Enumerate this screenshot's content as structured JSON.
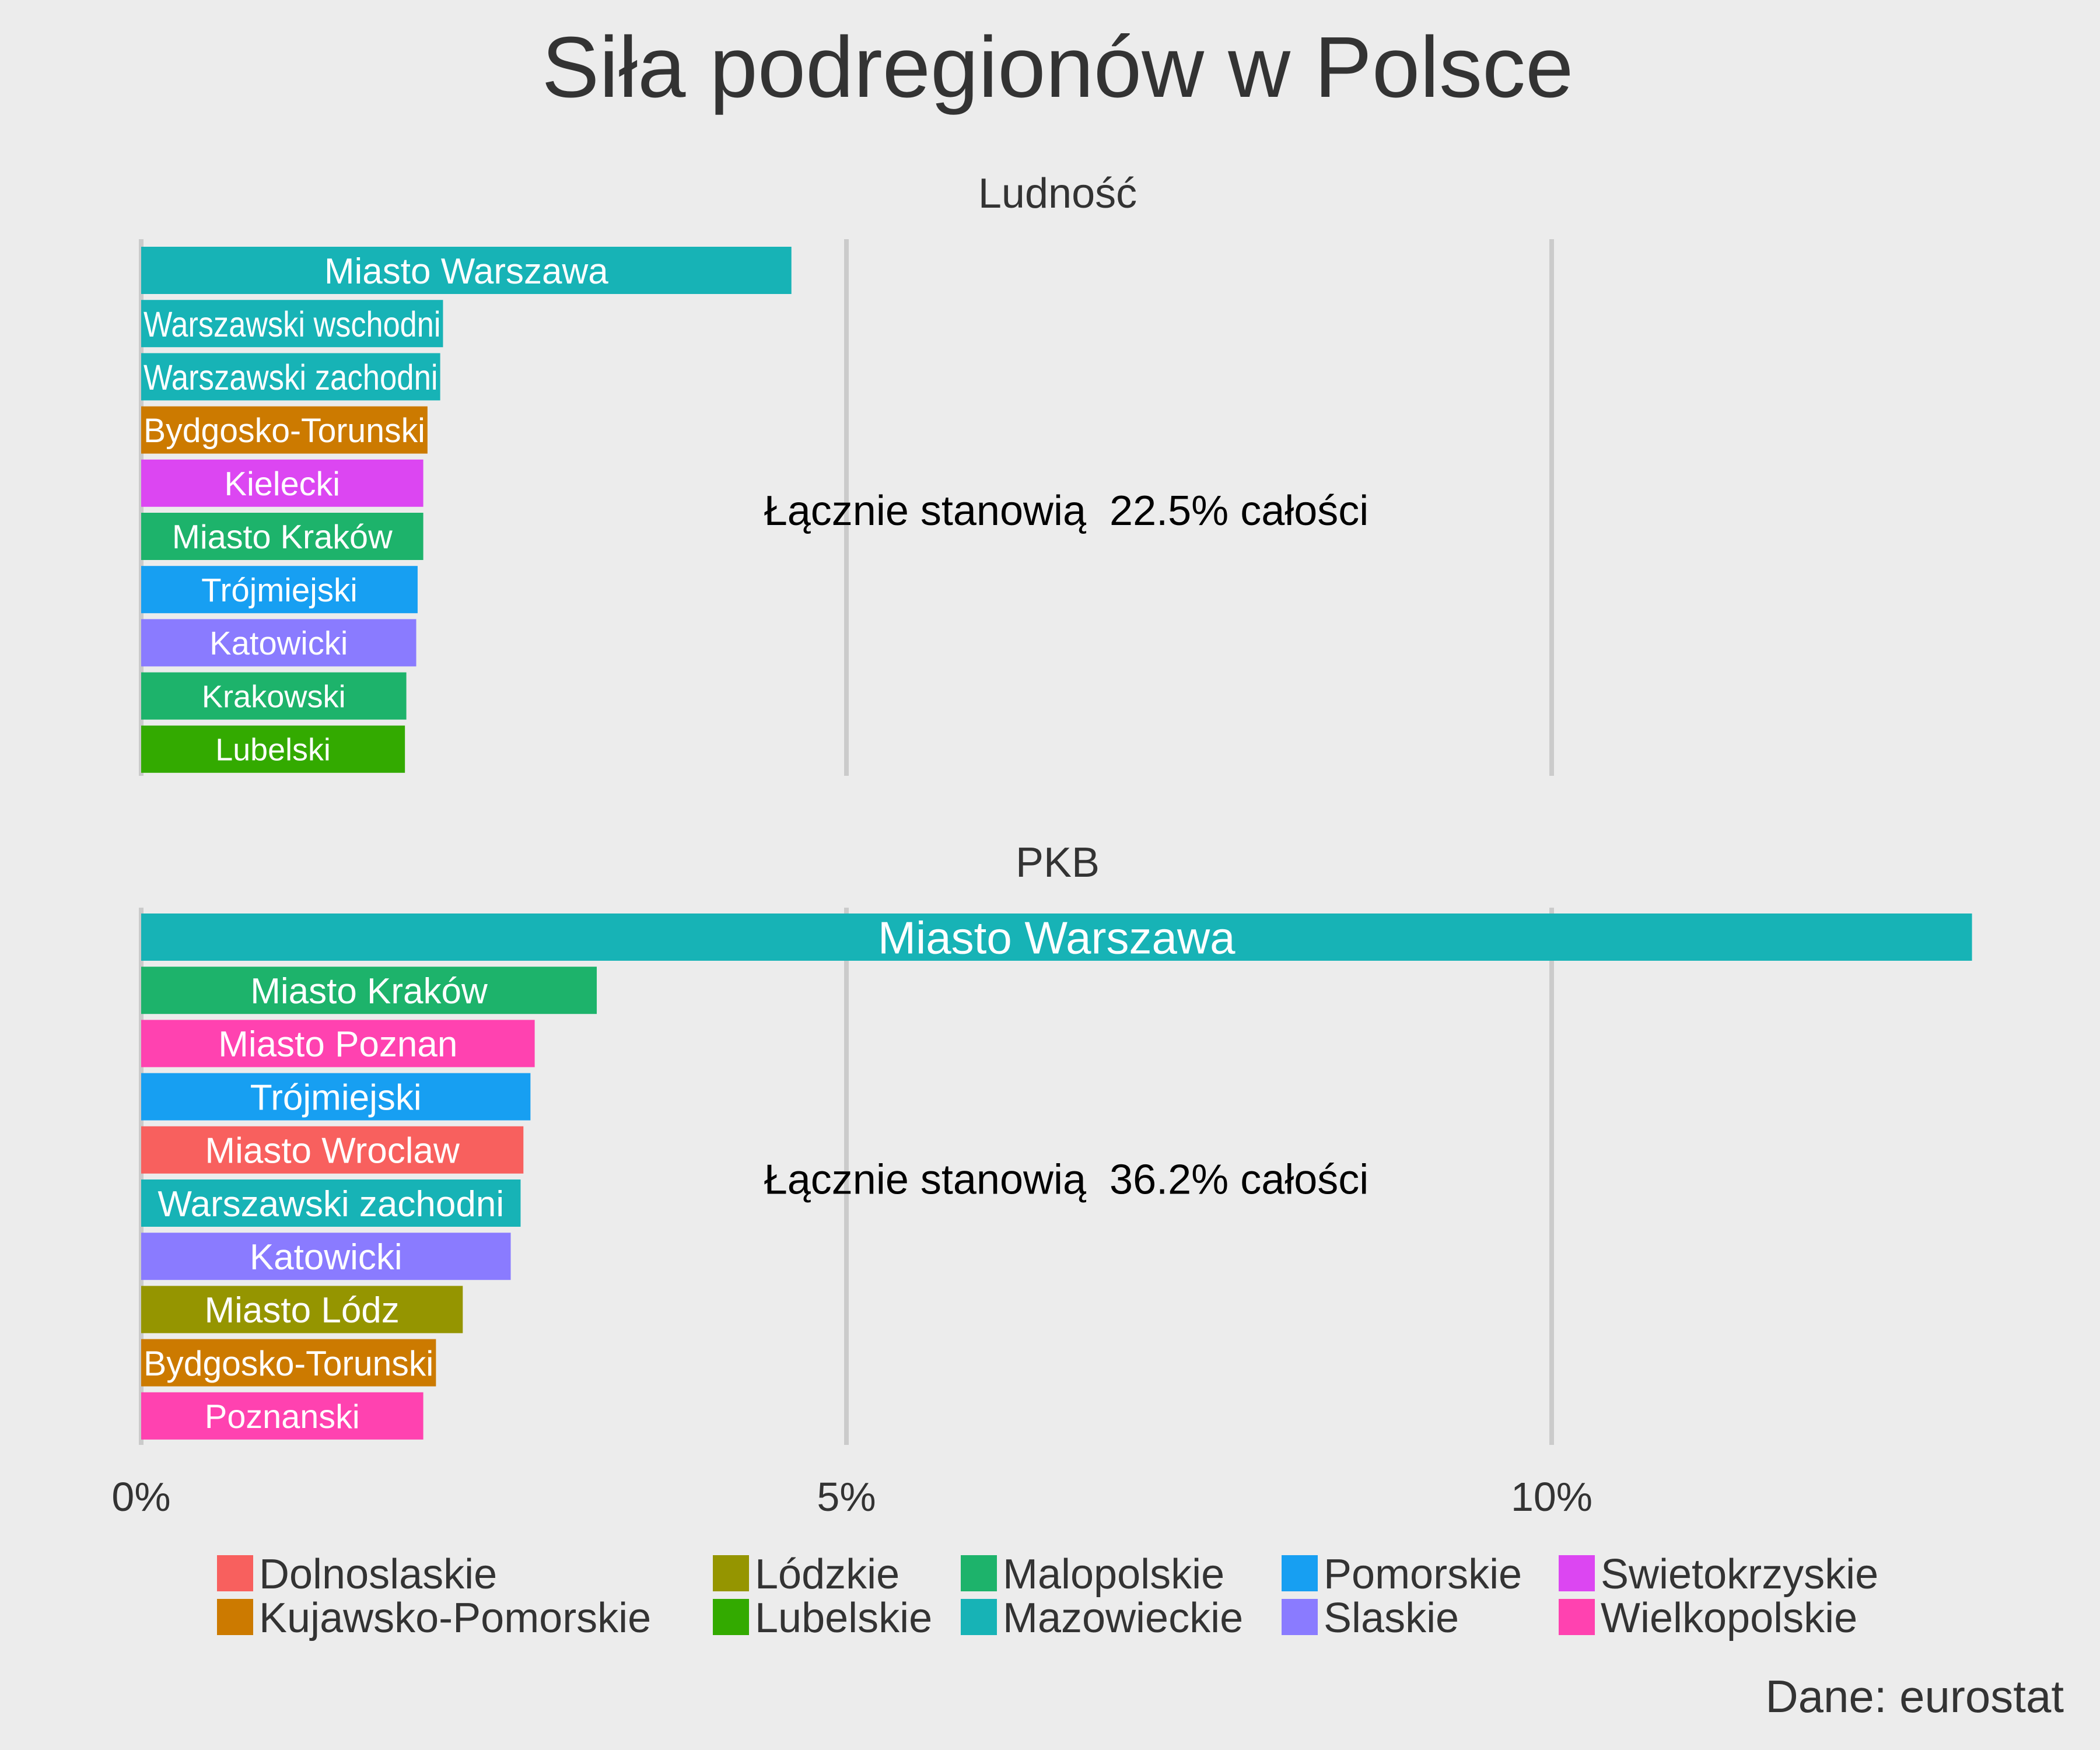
{
  "chart_data": {
    "type": "bar",
    "orientation": "horizontal",
    "title": "Siła podregionów w Polsce",
    "caption": "Dane: eurostat",
    "xlim": [
      0,
      13
    ],
    "x_ticks": [
      {
        "value": 0,
        "label": "0%"
      },
      {
        "value": 5,
        "label": "5%"
      },
      {
        "value": 10,
        "label": "10%"
      }
    ],
    "panels": [
      {
        "name": "Ludność",
        "annotation": "Łącznie stanowią  22.5% całości",
        "bars": [
          {
            "label": "Miasto Warszawa",
            "value": 4.61,
            "region": "Mazowieckie"
          },
          {
            "label": "Warszawski wschodni",
            "value": 2.14,
            "region": "Mazowieckie"
          },
          {
            "label": "Warszawski zachodni",
            "value": 2.12,
            "region": "Mazowieckie"
          },
          {
            "label": "Bydgosko-Torunski",
            "value": 2.03,
            "region": "Kujawsko-Pomorskie"
          },
          {
            "label": "Kielecki",
            "value": 2.0,
            "region": "Swietokrzyskie"
          },
          {
            "label": "Miasto Kraków",
            "value": 2.0,
            "region": "Malopolskie"
          },
          {
            "label": "Trójmiejski",
            "value": 1.96,
            "region": "Pomorskie"
          },
          {
            "label": "Katowicki",
            "value": 1.95,
            "region": "Slaskie"
          },
          {
            "label": "Krakowski",
            "value": 1.88,
            "region": "Malopolskie"
          },
          {
            "label": "Lubelski",
            "value": 1.87,
            "region": "Lubelskie"
          }
        ]
      },
      {
        "name": "PKB",
        "annotation": "Łącznie stanowią  36.2% całości",
        "bars": [
          {
            "label": "Miasto Warszawa",
            "value": 12.98,
            "region": "Mazowieckie"
          },
          {
            "label": "Miasto Kraków",
            "value": 3.23,
            "region": "Malopolskie"
          },
          {
            "label": "Miasto Poznan",
            "value": 2.79,
            "region": "Wielkopolskie"
          },
          {
            "label": "Trójmiejski",
            "value": 2.76,
            "region": "Pomorskie"
          },
          {
            "label": "Miasto Wroclaw",
            "value": 2.71,
            "region": "Dolnoslaskie"
          },
          {
            "label": "Warszawski zachodni",
            "value": 2.69,
            "region": "Mazowieckie"
          },
          {
            "label": "Katowicki",
            "value": 2.62,
            "region": "Slaskie"
          },
          {
            "label": "Miasto Lódz",
            "value": 2.28,
            "region": "Lódzkie"
          },
          {
            "label": "Bydgosko-Torunski",
            "value": 2.09,
            "region": "Kujawsko-Pomorskie"
          },
          {
            "label": "Poznanski",
            "value": 2.0,
            "region": "Wielkopolskie"
          }
        ]
      }
    ],
    "legend": {
      "placement": "bottom",
      "items": [
        {
          "name": "Dolnoslaskie",
          "color": "#f8766d"
        },
        {
          "name": "Kujawsko-Pomorskie",
          "color": "#d39200"
        },
        {
          "name": "Lódzkie",
          "color": "#93aa00"
        },
        {
          "name": "Lubelskie",
          "color": "#00ba38"
        },
        {
          "name": "Malopolskie",
          "color": "#00c19f"
        },
        {
          "name": "Mazowieckie",
          "color": "#00b9e3"
        },
        {
          "name": "Pomorskie",
          "color": "#619cff"
        },
        {
          "name": "Slaskie",
          "color": "#a58aff"
        },
        {
          "name": "Swietokrzyskie",
          "color": "#db72fb"
        },
        {
          "name": "Wielkopolskie",
          "color": "#ff61c3"
        }
      ]
    },
    "colors": {
      "Dolnoslaskie": "#f8605e",
      "Kujawsko-Pomorskie": "#cc7a00",
      "Lódzkie": "#959500",
      "Lubelskie": "#33aa00",
      "Malopolskie": "#1db36b",
      "Mazowieckie": "#17b3b6",
      "Pomorskie": "#179ff2",
      "Slaskie": "#8a7bff",
      "Swietokrzyskie": "#dc46f2",
      "Wielkopolskie": "#ff42b0"
    },
    "grid": true
  }
}
